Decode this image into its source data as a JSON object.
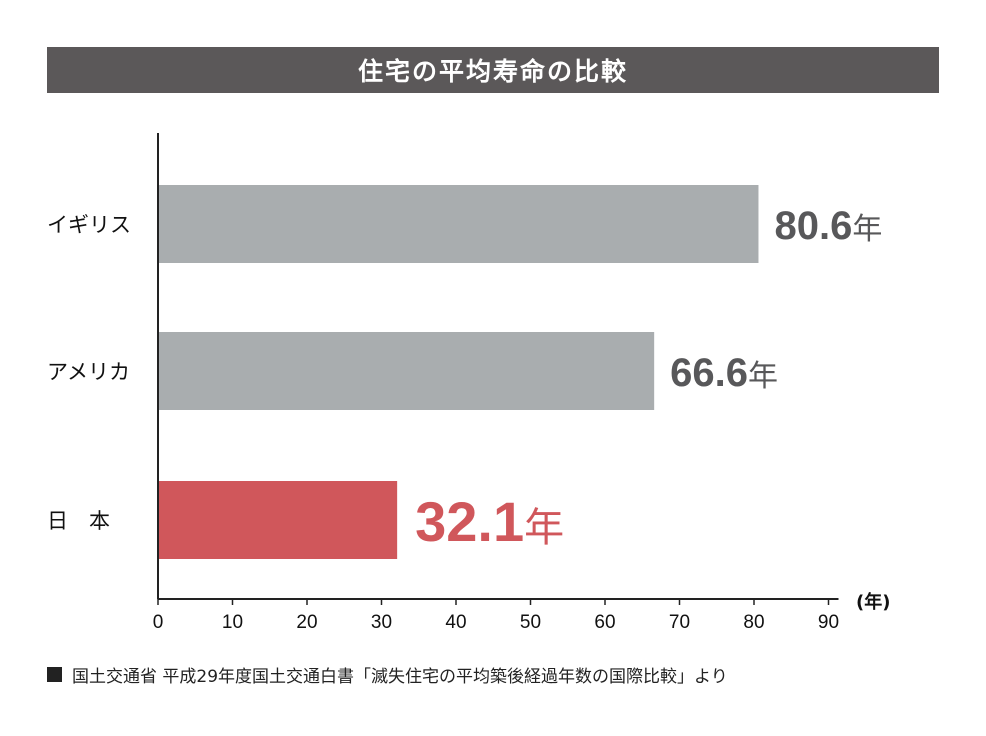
{
  "title": "住宅の平均寿命の比較",
  "chart_data": {
    "type": "bar",
    "orientation": "horizontal",
    "title": "住宅の平均寿命の比較",
    "categories": [
      "イギリス",
      "アメリカ",
      "日　本"
    ],
    "values": [
      80.6,
      66.6,
      32.1
    ],
    "value_labels": [
      "80.6",
      "66.6",
      "32.1"
    ],
    "unit_suffix": "年",
    "xlim": [
      0,
      90
    ],
    "xticks": [
      0,
      10,
      20,
      30,
      40,
      50,
      60,
      70,
      80,
      90
    ],
    "xlabel": "(年)",
    "bar_colors": [
      "#a9adaf",
      "#a9adaf",
      "#d0575b"
    ],
    "label_colors": [
      "#58585a",
      "#58585a",
      "#d0575b"
    ]
  },
  "source": {
    "marker": "■",
    "text": "国土交通省 平成29年度国土交通白書「滅失住宅の平均築後経過年数の国際比較」より"
  }
}
